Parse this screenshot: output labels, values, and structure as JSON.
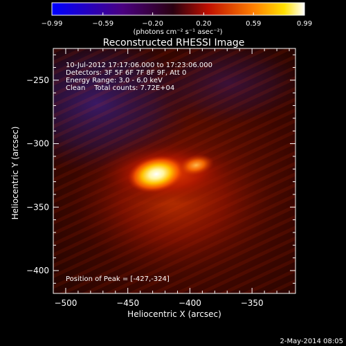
{
  "chart_data": {
    "type": "heatmap",
    "title": "Reconstructed RHESSI Image",
    "xlabel": "Heliocentric X (arcsec)",
    "ylabel": "Heliocentric Y (arcsec)",
    "xlim": [
      -510,
      -315
    ],
    "ylim": [
      -418,
      -225
    ],
    "x_ticks": [
      -500,
      -450,
      -400,
      -350
    ],
    "x_tick_labels": [
      "−500",
      "−450",
      "−400",
      "−350"
    ],
    "y_ticks": [
      -250,
      -300,
      -350,
      -400
    ],
    "y_tick_labels": [
      "−250",
      "−300",
      "−350",
      "−400"
    ],
    "colorbar": {
      "ticks": [
        -0.99,
        -0.59,
        -0.2,
        0.2,
        0.59,
        0.99
      ],
      "tick_labels": [
        "−0.99",
        "−0.59",
        "−0.20",
        "0.20",
        "0.59",
        "0.99"
      ],
      "range": [
        -0.99,
        0.99
      ],
      "units_label": "(photons cm⁻² s⁻¹ asec⁻²)",
      "colormap": "blue-purple-red-yellow-white"
    },
    "sources": [
      {
        "name": "peak",
        "x": -427,
        "y": -324,
        "value": 0.99
      },
      {
        "name": "secondary",
        "x": -395,
        "y": -317,
        "value": 0.55
      }
    ],
    "background_regions": [
      {
        "name": "negative",
        "value": -0.3,
        "location": "upper-left"
      }
    ]
  },
  "annotations": {
    "time": "10-Jul-2012 17:17:06.000 to 17:23:06.000",
    "detectors": "Detectors: 3F 5F 6F 7F 8F 9F, Att 0",
    "energy": "Energy Range: 3.0 - 6.0 keV",
    "clean": "Clean    Total counts: 7.72E+04",
    "peak": "Position of Peak = [-427,-324]"
  },
  "footer": {
    "date": "2-May-2014 08:05"
  }
}
